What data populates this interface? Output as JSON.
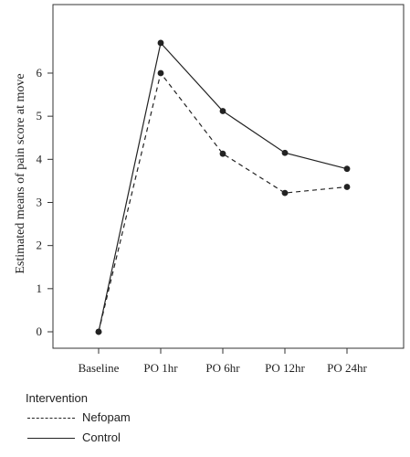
{
  "chart_data": {
    "type": "line",
    "categories": [
      "Baseline",
      "PO 1hr",
      "PO 6hr",
      "PO 12hr",
      "PO 24hr"
    ],
    "series": [
      {
        "name": "Nefopam",
        "values": [
          0.0,
          6.0,
          4.13,
          3.22,
          3.36
        ],
        "style": "dashed",
        "color": "#222222"
      },
      {
        "name": "Control",
        "values": [
          0.0,
          6.7,
          5.12,
          4.15,
          3.78
        ],
        "style": "solid",
        "color": "#222222"
      }
    ],
    "ylabel": "Estimated means of pain score at move",
    "xlabel": "",
    "ylim": [
      0,
      7
    ],
    "yticks": [
      0,
      1,
      2,
      3,
      4,
      5,
      6
    ],
    "grid": false,
    "legend": {
      "title": "Intervention",
      "placement": "bottom-left"
    }
  }
}
